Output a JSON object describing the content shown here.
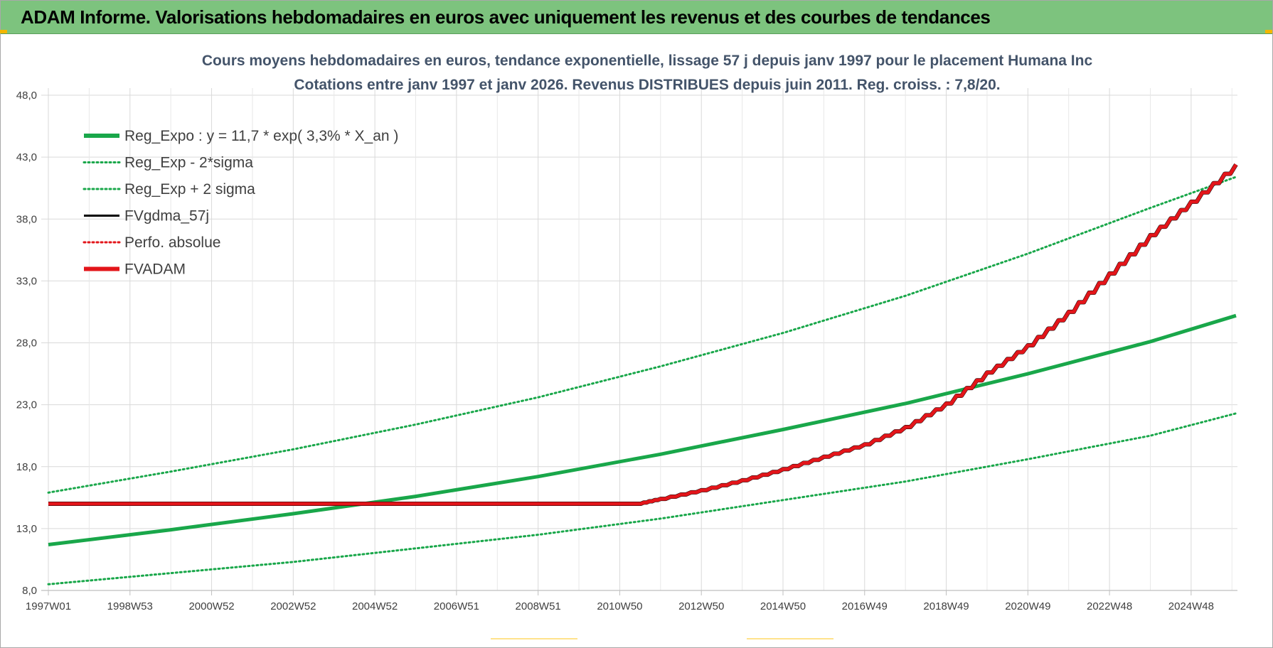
{
  "header": {
    "title": "ADAM Informe. Valorisations hebdomadaires en euros avec uniquement les revenus et des courbes de tendances"
  },
  "colors": {
    "banner": "#7dc37e",
    "trend_green": "#19a74a",
    "fv_red": "#e3151a",
    "fv_black": "#000000",
    "grid": "#d9d9d9"
  },
  "chart_data": {
    "type": "line",
    "title": "Cours moyens hebdomadaires en euros, tendance exponentielle, lissage 57 j depuis janv 1997 pour le placement Humana Inc",
    "subtitle": "Cotations entre janv 1997 et janv 2026. Revenus DISTRIBUES depuis juin 2011. Reg. croiss. : 7,8/20.",
    "xlabel": "",
    "ylabel": "",
    "x_tick_labels": [
      "1997W01",
      "1998W53",
      "2000W52",
      "2002W52",
      "2004W52",
      "2006W51",
      "2008W51",
      "2010W50",
      "2012W50",
      "2014W50",
      "2016W49",
      "2018W49",
      "2020W49",
      "2022W48",
      "2024W48"
    ],
    "x_ticks_year": [
      1997.0,
      1999.0,
      2001.0,
      2003.0,
      2005.0,
      2007.0,
      2009.0,
      2011.0,
      2013.0,
      2015.0,
      2017.0,
      2019.0,
      2021.0,
      2023.0,
      2025.0
    ],
    "xlim_year": [
      1997.0,
      2026.1
    ],
    "ylim": [
      8.0,
      48.0
    ],
    "y_ticks": [
      8.0,
      13.0,
      18.0,
      23.0,
      28.0,
      33.0,
      38.0,
      43.0,
      48.0
    ],
    "y_tick_labels": [
      "8,0",
      "13,0",
      "18,0",
      "23,0",
      "28,0",
      "33,0",
      "38,0",
      "43,0",
      "48,0"
    ],
    "grid": true,
    "legend_position": "top-left",
    "series": [
      {
        "name": "Reg_Expo : y = 11,7 * exp( 3,3% *  X_an )",
        "style": "solid-thick",
        "color": "#19a74a",
        "x": [
          1997.0,
          2000.0,
          2003.0,
          2006.0,
          2009.0,
          2012.0,
          2015.0,
          2018.0,
          2021.0,
          2024.0,
          2026.1
        ],
        "y": [
          11.7,
          12.9,
          14.2,
          15.6,
          17.2,
          19.0,
          21.0,
          23.1,
          25.5,
          28.1,
          30.2
        ]
      },
      {
        "name": "Reg_Exp - 2*sigma",
        "style": "dotted",
        "color": "#19a74a",
        "x": [
          1997.0,
          2000.0,
          2003.0,
          2006.0,
          2009.0,
          2012.0,
          2015.0,
          2018.0,
          2021.0,
          2024.0,
          2026.1
        ],
        "y": [
          8.5,
          9.4,
          10.3,
          11.4,
          12.5,
          13.8,
          15.3,
          16.8,
          18.6,
          20.5,
          22.3
        ]
      },
      {
        "name": "Reg_Exp + 2 sigma",
        "style": "dotted",
        "color": "#19a74a",
        "x": [
          1997.0,
          2000.0,
          2003.0,
          2006.0,
          2009.0,
          2012.0,
          2015.0,
          2018.0,
          2021.0,
          2024.0,
          2026.1
        ],
        "y": [
          15.9,
          17.6,
          19.4,
          21.4,
          23.6,
          26.1,
          28.8,
          31.8,
          35.2,
          38.9,
          41.4
        ]
      },
      {
        "name": "FVgdma_57j",
        "style": "solid",
        "color": "#000000",
        "x": [
          1997.0,
          2011.45,
          2012.0,
          2013.0,
          2014.0,
          2015.0,
          2016.0,
          2017.0,
          2018.0,
          2019.0,
          2020.0,
          2021.0,
          2022.0,
          2023.0,
          2024.0,
          2025.0,
          2026.1
        ],
        "y": [
          15.0,
          15.0,
          15.4,
          16.1,
          16.9,
          17.8,
          18.8,
          19.8,
          21.2,
          23.1,
          25.6,
          27.8,
          30.5,
          33.6,
          36.7,
          39.4,
          42.4
        ]
      },
      {
        "name": "Perfo. absolue",
        "style": "dotted",
        "color": "#e3151a",
        "x": [],
        "y": []
      },
      {
        "name": "FVADAM",
        "style": "solid-thick",
        "color": "#e3151a",
        "x": [
          1997.0,
          2011.45,
          2012.0,
          2013.0,
          2014.0,
          2015.0,
          2016.0,
          2017.0,
          2018.0,
          2019.0,
          2020.0,
          2021.0,
          2022.0,
          2023.0,
          2024.0,
          2025.0,
          2026.1
        ],
        "y": [
          15.0,
          15.0,
          15.4,
          16.1,
          16.9,
          17.8,
          18.8,
          19.8,
          21.2,
          23.1,
          25.6,
          27.8,
          30.5,
          33.6,
          36.7,
          39.4,
          42.4
        ]
      }
    ]
  }
}
